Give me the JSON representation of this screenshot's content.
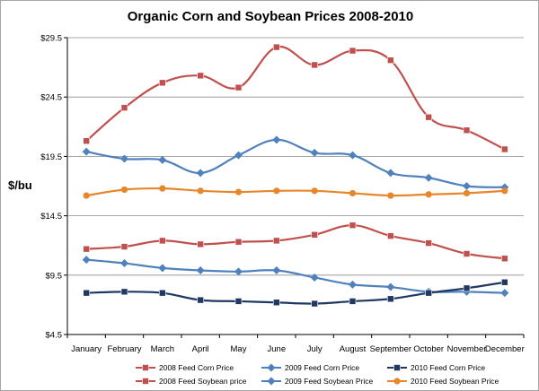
{
  "chart_data": {
    "type": "line",
    "title": "Organic Corn and Soybean Prices 2008-2010",
    "xlabel": "",
    "ylabel": "$/bu",
    "categories": [
      "January",
      "February",
      "March",
      "April",
      "May",
      "June",
      "July",
      "August",
      "September",
      "October",
      "November",
      "December"
    ],
    "y_ticks": [
      "$4.5",
      "$9.5",
      "$14.5",
      "$19.5",
      "$24.5",
      "$29.5"
    ],
    "ylim": [
      4.5,
      29.5
    ],
    "grid": true,
    "legend_position": "bottom",
    "series": [
      {
        "name": "2008 Feed Corn Price",
        "color": "#c0504d",
        "marker": "square",
        "values": [
          11.7,
          11.9,
          12.4,
          12.1,
          12.3,
          12.4,
          12.9,
          13.7,
          12.8,
          12.2,
          11.3,
          10.9
        ]
      },
      {
        "name": "2009 Feed Corn Price",
        "color": "#4f81bd",
        "marker": "diamond",
        "values": [
          10.8,
          10.5,
          10.1,
          9.9,
          9.8,
          9.9,
          9.3,
          8.7,
          8.5,
          8.1,
          8.1,
          8.0
        ]
      },
      {
        "name": "2010 Feed Corn Price",
        "color": "#1f3864",
        "marker": "square",
        "values": [
          8.0,
          8.1,
          8.0,
          7.4,
          7.3,
          7.2,
          7.1,
          7.3,
          7.5,
          8.0,
          8.4,
          8.9
        ]
      },
      {
        "name": "2008 Feed Soybean price",
        "color": "#c0504d",
        "marker": "square",
        "values": [
          20.8,
          23.6,
          25.7,
          26.3,
          25.3,
          28.7,
          27.2,
          28.4,
          27.6,
          22.8,
          21.7,
          20.1
        ]
      },
      {
        "name": "2009 Feed Soybean Price",
        "color": "#4f81bd",
        "marker": "diamond",
        "values": [
          19.9,
          19.3,
          19.2,
          18.1,
          19.6,
          20.9,
          19.8,
          19.6,
          18.1,
          17.7,
          17.0,
          16.9
        ]
      },
      {
        "name": "2010 Feed Soybean Price",
        "color": "#e8862b",
        "marker": "circle",
        "values": [
          16.2,
          16.7,
          16.8,
          16.6,
          16.5,
          16.6,
          16.6,
          16.4,
          16.2,
          16.3,
          16.4,
          16.6
        ]
      }
    ]
  }
}
